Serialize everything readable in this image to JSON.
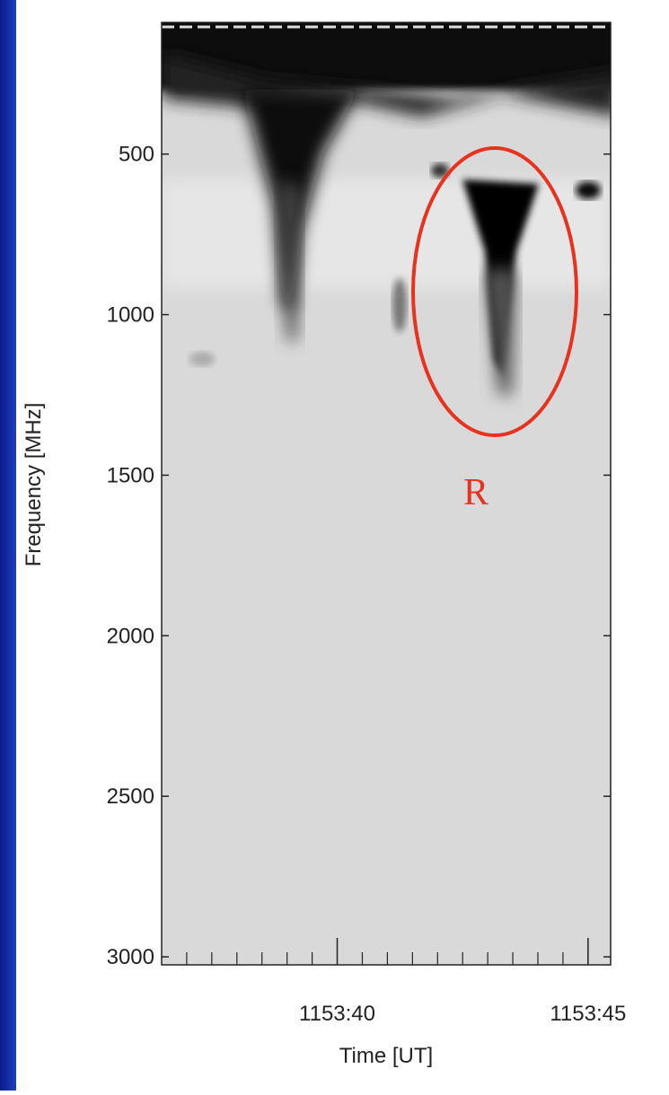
{
  "chart_data": {
    "type": "spectrogram",
    "y_label": "Frequency [MHz]",
    "x_label": "Time [UT]",
    "ylim": [
      90,
      3025
    ],
    "y_inverted": true,
    "yticks": [
      500,
      1000,
      1500,
      2000,
      2500,
      3000
    ],
    "xlim": [
      36.5,
      45.45
    ],
    "xticks": [
      {
        "value": 40,
        "label": "1153:40"
      },
      {
        "value": 45,
        "label": "1153:45"
      }
    ],
    "xminorticks": [
      37,
      37.5,
      38,
      38.5,
      39,
      39.5,
      40.5,
      41,
      41.5,
      42,
      42.5,
      43,
      43.5,
      44,
      44.5,
      45
    ],
    "annotation": {
      "text": "R",
      "color": "#e8321e"
    }
  }
}
